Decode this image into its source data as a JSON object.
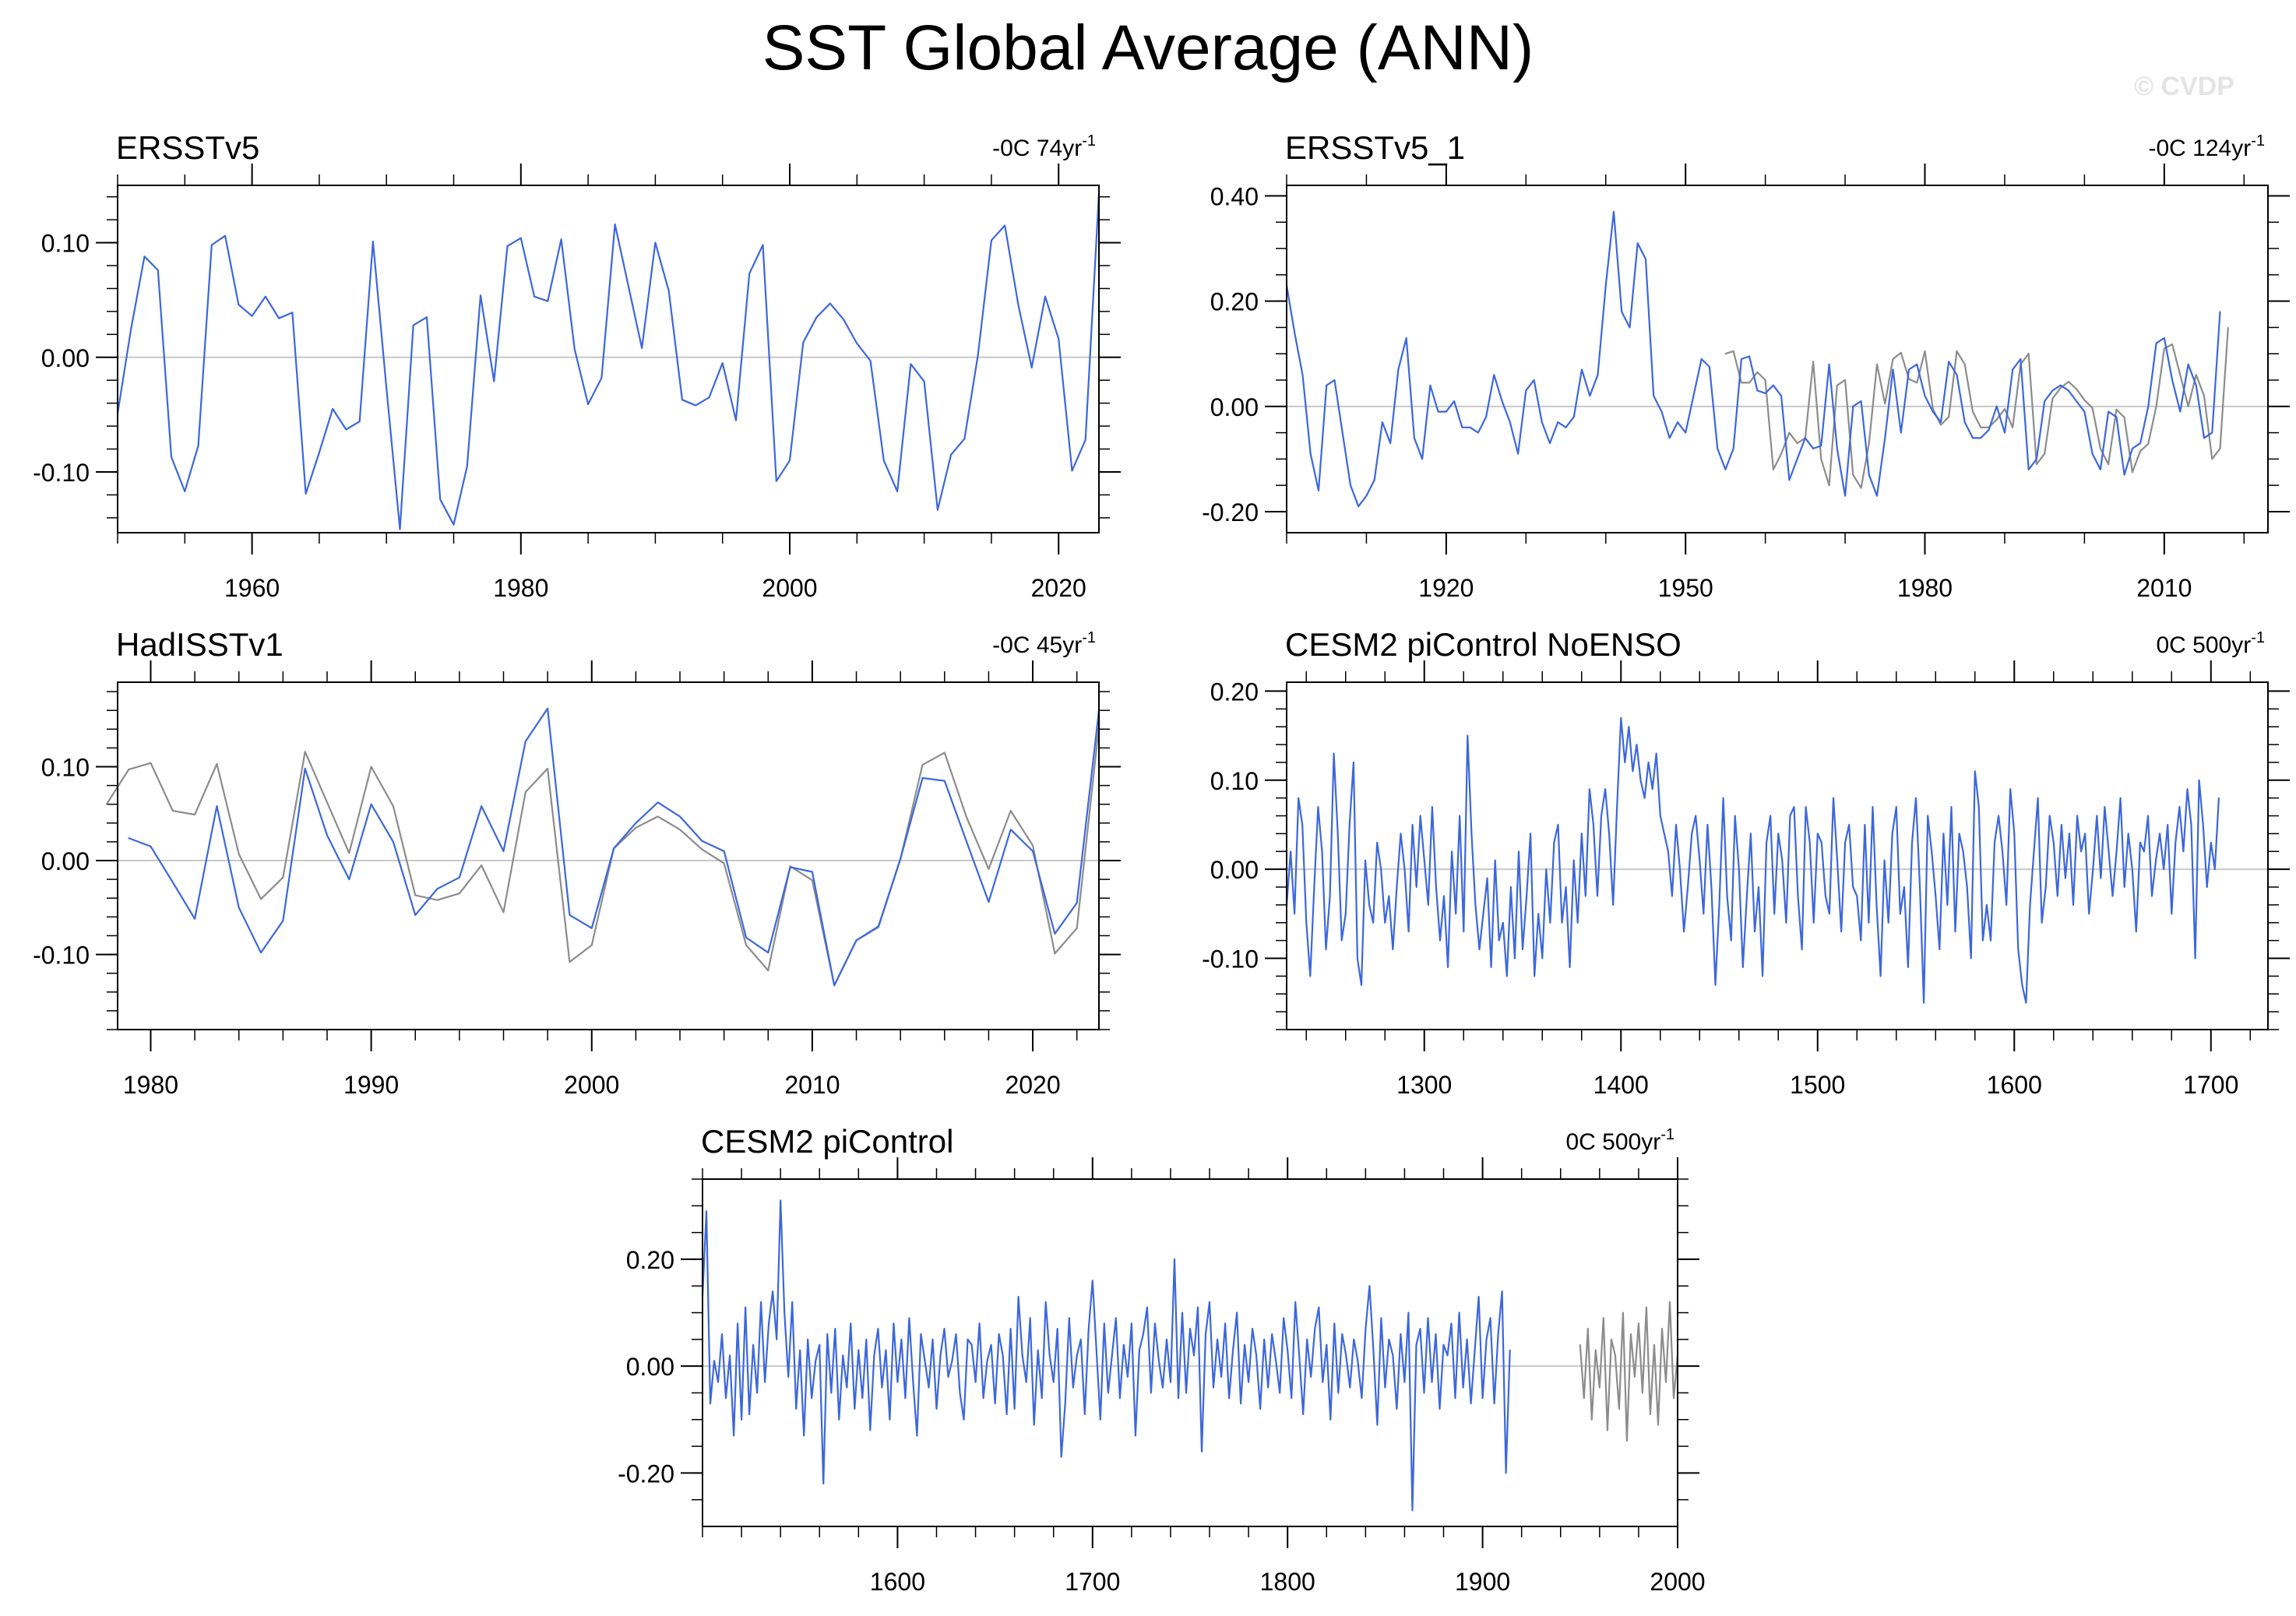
{
  "title": "SST Global Average (ANN)",
  "watermark": "© CVDP",
  "colors": {
    "primary": "#3c67dc",
    "secondary": "#8c8c8c",
    "axis": "#000000",
    "zero_line": "#c8c8c8"
  },
  "chart_data": [
    {
      "type": "line",
      "title": "ERSSTv5",
      "trend": "-0C 74yr",
      "trend_exp": "-1",
      "x_ticks": [
        1960,
        1980,
        2000,
        2020
      ],
      "x_range": [
        1950,
        2023
      ],
      "y_ticks": [
        0.1,
        0.0,
        -0.1
      ],
      "y_tick_labels": [
        "0.10",
        "0.00",
        "-0.10"
      ],
      "y_range": [
        -0.153,
        0.15
      ],
      "series": [
        {
          "color": "#3c67dc",
          "start": 1950,
          "values": [
            -0.049,
            0.025,
            0.088,
            0.076,
            -0.087,
            -0.117,
            -0.077,
            0.098,
            0.106,
            0.046,
            0.036,
            0.053,
            0.034,
            0.039,
            -0.119,
            -0.083,
            -0.045,
            -0.063,
            -0.056,
            0.101,
            -0.027,
            -0.15,
            0.028,
            0.035,
            -0.124,
            -0.146,
            -0.095,
            0.054,
            -0.021,
            0.097,
            0.104,
            0.053,
            0.049,
            0.103,
            0.007,
            -0.041,
            -0.018,
            0.116,
            0.062,
            0.008,
            0.1,
            0.058,
            -0.037,
            -0.042,
            -0.035,
            -0.005,
            -0.055,
            0.073,
            0.098,
            -0.108,
            -0.09,
            0.013,
            0.035,
            0.047,
            0.033,
            0.012,
            -0.003,
            -0.09,
            -0.117,
            -0.006,
            -0.021,
            -0.133,
            -0.085,
            -0.071,
            0.002,
            0.102,
            0.115,
            0.046,
            -0.009,
            0.053,
            0.016,
            -0.099,
            -0.072,
            0.143
          ]
        }
      ]
    },
    {
      "type": "line",
      "title": "ERSSTv5_1",
      "trend": "-0C 124yr",
      "trend_exp": "-1",
      "x_ticks": [
        1920,
        1950,
        1980,
        2010
      ],
      "x_range": [
        1900,
        2023
      ],
      "y_ticks": [
        0.4,
        0.2,
        0.0,
        -0.2
      ],
      "y_tick_labels": [
        "0.40",
        "0.20",
        "0.00",
        "-0.20"
      ],
      "y_range": [
        -0.24,
        0.42
      ],
      "series": [
        {
          "color": "#8c8c8c",
          "start": 1955,
          "values": [
            0.1,
            0.105,
            0.045,
            0.045,
            0.065,
            0.05,
            -0.12,
            -0.09,
            -0.05,
            -0.07,
            -0.06,
            0.085,
            -0.1,
            -0.15,
            0.04,
            0.05,
            -0.13,
            -0.155,
            -0.07,
            0.08,
            0.005,
            0.09,
            0.102,
            0.052,
            0.045,
            0.105,
            -0.005,
            -0.035,
            -0.02,
            0.105,
            0.08,
            -0.01,
            -0.04,
            -0.04,
            -0.025,
            -0.005,
            -0.04,
            0.08,
            0.1,
            -0.11,
            -0.09,
            0.015,
            0.035,
            0.047,
            0.033,
            0.012,
            -0.003,
            -0.08,
            -0.11,
            -0.006,
            -0.021,
            -0.125,
            -0.085,
            -0.071,
            0.0,
            0.11,
            0.118,
            0.06,
            0.0,
            0.06,
            0.02,
            -0.1,
            -0.08,
            0.15
          ]
        },
        {
          "color": "#3c67dc",
          "start": 1900,
          "values": [
            0.23,
            0.14,
            0.06,
            -0.09,
            -0.16,
            0.04,
            0.05,
            -0.05,
            -0.15,
            -0.19,
            -0.17,
            -0.14,
            -0.03,
            -0.07,
            0.07,
            0.13,
            -0.06,
            -0.1,
            0.04,
            -0.01,
            -0.01,
            0.01,
            -0.04,
            -0.04,
            -0.05,
            -0.02,
            0.06,
            0.01,
            -0.03,
            -0.09,
            0.03,
            0.05,
            -0.03,
            -0.07,
            -0.03,
            -0.04,
            -0.02,
            0.07,
            0.02,
            0.06,
            0.23,
            0.37,
            0.18,
            0.15,
            0.31,
            0.28,
            0.02,
            -0.01,
            -0.06,
            -0.03,
            -0.05,
            0.02,
            0.09,
            0.075,
            -0.08,
            -0.12,
            -0.08,
            0.09,
            0.095,
            0.03,
            0.025,
            0.04,
            0.02,
            -0.14,
            -0.1,
            -0.06,
            -0.08,
            -0.075,
            0.08,
            -0.08,
            -0.17,
            0.0,
            0.01,
            -0.13,
            -0.17,
            -0.06,
            0.07,
            -0.05,
            0.07,
            0.08,
            0.02,
            -0.01,
            -0.03,
            0.085,
            0.06,
            -0.03,
            -0.06,
            -0.06,
            -0.045,
            0.0,
            -0.05,
            0.07,
            0.09,
            -0.12,
            -0.1,
            0.01,
            0.03,
            0.04,
            0.03,
            0.01,
            -0.01,
            -0.09,
            -0.12,
            -0.01,
            -0.02,
            -0.13,
            -0.08,
            -0.07,
            0.0,
            0.12,
            0.13,
            0.05,
            -0.01,
            0.08,
            0.04,
            -0.06,
            -0.05,
            0.18
          ]
        }
      ]
    },
    {
      "type": "line",
      "title": "HadISSTv1",
      "trend": "-0C 45yr",
      "trend_exp": "-1",
      "x_ticks": [
        1980,
        1990,
        2000,
        2010,
        2020
      ],
      "x_range": [
        1978.5,
        2023
      ],
      "y_ticks": [
        0.1,
        0.0,
        -0.1
      ],
      "y_tick_labels": [
        "0.10",
        "0.00",
        "-0.10"
      ],
      "y_range": [
        -0.18,
        0.19
      ],
      "series": [
        {
          "color": "#8c8c8c",
          "start": 1978,
          "values": [
            0.06,
            0.097,
            0.104,
            0.053,
            0.049,
            0.103,
            0.007,
            -0.041,
            -0.018,
            0.116,
            0.062,
            0.008,
            0.1,
            0.058,
            -0.037,
            -0.042,
            -0.035,
            -0.005,
            -0.055,
            0.073,
            0.098,
            -0.108,
            -0.09,
            0.013,
            0.035,
            0.047,
            0.033,
            0.012,
            -0.003,
            -0.09,
            -0.117,
            -0.006,
            -0.021,
            -0.133,
            -0.085,
            -0.071,
            0.002,
            0.102,
            0.115,
            0.046,
            -0.009,
            0.053,
            0.016,
            -0.099,
            -0.072,
            0.143
          ]
        },
        {
          "color": "#3c67dc",
          "start": 1979,
          "values": [
            0.024,
            0.015,
            -0.023,
            -0.062,
            0.058,
            -0.05,
            -0.098,
            -0.064,
            0.098,
            0.027,
            -0.02,
            0.06,
            0.02,
            -0.058,
            -0.03,
            -0.018,
            0.058,
            0.01,
            0.127,
            0.162,
            -0.058,
            -0.072,
            0.013,
            0.04,
            0.062,
            0.047,
            0.021,
            0.01,
            -0.082,
            -0.098,
            -0.007,
            -0.012,
            -0.133,
            -0.085,
            -0.07,
            0.002,
            0.088,
            0.085,
            0.02,
            -0.044,
            0.033,
            0.01,
            -0.078,
            -0.045,
            0.16
          ]
        }
      ]
    },
    {
      "type": "line",
      "title": "CESM2 piControl NoENSO",
      "trend": "0C 500yr",
      "trend_exp": "-1",
      "x_ticks": [
        1300,
        1400,
        1500,
        1600,
        1700
      ],
      "x_range": [
        1230,
        1729
      ],
      "y_ticks": [
        0.2,
        0.1,
        0.0,
        -0.1
      ],
      "y_tick_labels": [
        "0.20",
        "0.10",
        "0.00",
        "-0.10"
      ],
      "y_range": [
        -0.18,
        0.21
      ],
      "series": [
        {
          "color": "#3c67dc",
          "start": 1230,
          "step": 2,
          "values": [
            -0.04,
            0.02,
            -0.05,
            0.08,
            0.05,
            -0.06,
            -0.12,
            -0.02,
            0.07,
            0.02,
            -0.09,
            -0.03,
            0.13,
            0.04,
            -0.08,
            -0.05,
            0.05,
            0.12,
            -0.1,
            -0.13,
            0.01,
            -0.04,
            -0.06,
            0.03,
            0.0,
            -0.06,
            -0.03,
            -0.09,
            -0.02,
            0.04,
            0.0,
            -0.07,
            0.05,
            -0.02,
            0.06,
            0.01,
            -0.04,
            0.07,
            -0.02,
            -0.08,
            -0.03,
            -0.11,
            0.02,
            -0.05,
            0.06,
            -0.07,
            0.15,
            0.04,
            -0.04,
            -0.09,
            -0.05,
            -0.01,
            -0.11,
            0.01,
            -0.08,
            -0.06,
            -0.12,
            -0.02,
            -0.1,
            0.02,
            -0.09,
            -0.03,
            0.04,
            -0.12,
            -0.05,
            -0.1,
            0.0,
            -0.06,
            0.03,
            0.05,
            -0.06,
            -0.02,
            -0.11,
            0.01,
            -0.06,
            0.04,
            -0.03,
            0.09,
            0.05,
            -0.03,
            0.06,
            0.09,
            0.04,
            -0.04,
            0.07,
            0.17,
            0.12,
            0.16,
            0.11,
            0.14,
            0.1,
            0.08,
            0.12,
            0.09,
            0.13,
            0.06,
            0.04,
            0.02,
            -0.03,
            0.05,
            0.0,
            -0.07,
            -0.02,
            0.04,
            0.06,
            0.01,
            -0.05,
            0.05,
            -0.02,
            -0.13,
            -0.04,
            0.08,
            -0.03,
            -0.08,
            0.06,
            0.0,
            -0.11,
            -0.03,
            0.04,
            -0.07,
            -0.02,
            -0.12,
            0.03,
            0.06,
            -0.05,
            0.04,
            0.01,
            -0.06,
            0.06,
            0.07,
            -0.03,
            -0.09,
            0.07,
            0.03,
            -0.06,
            0.04,
            0.03,
            -0.03,
            -0.05,
            0.08,
            0.01,
            -0.07,
            0.03,
            0.05,
            -0.02,
            -0.03,
            -0.08,
            0.05,
            -0.06,
            0.07,
            -0.04,
            -0.12,
            0.01,
            -0.06,
            0.04,
            0.07,
            -0.05,
            -0.02,
            -0.11,
            0.03,
            0.08,
            -0.02,
            -0.15,
            0.06,
            0.02,
            -0.03,
            -0.09,
            0.04,
            -0.04,
            0.07,
            -0.07,
            0.04,
            0.02,
            -0.02,
            -0.1,
            0.11,
            0.07,
            -0.08,
            -0.04,
            -0.08,
            0.03,
            0.06,
            0.02,
            -0.04,
            0.09,
            0.04,
            -0.09,
            -0.13,
            -0.15,
            -0.04,
            0.02,
            0.08,
            -0.06,
            -0.02,
            0.06,
            0.03,
            -0.03,
            0.05,
            -0.01,
            0.04,
            -0.04,
            0.06,
            0.02,
            0.04,
            -0.05,
            0.0,
            0.06,
            -0.01,
            0.07,
            0.02,
            -0.03,
            0.02,
            0.08,
            -0.02,
            0.04,
            0.0,
            -0.07,
            0.03,
            0.02,
            0.06,
            -0.03,
            0.01,
            0.04,
            0.0,
            0.05,
            -0.05,
            0.03,
            0.07,
            0.02,
            0.09,
            0.05,
            -0.1,
            0.1,
            0.05,
            -0.02,
            0.03,
            0.0,
            0.08
          ]
        }
      ]
    },
    {
      "type": "line",
      "title": "CESM2 piControl",
      "trend": "0C 500yr",
      "trend_exp": "-1",
      "x_ticks": [
        1600,
        1700,
        1800,
        1900,
        2000
      ],
      "x_range": [
        1500,
        2000
      ],
      "y_ticks": [
        0.2,
        0.0,
        -0.2
      ],
      "y_tick_labels": [
        "0.20",
        "0.00",
        "-0.20"
      ],
      "y_range": [
        -0.3,
        0.35
      ],
      "series": [
        {
          "color": "#8c8c8c",
          "start": 1950,
          "step": 2,
          "values": [
            0.04,
            -0.06,
            0.07,
            -0.1,
            0.03,
            -0.04,
            0.09,
            -0.12,
            0.05,
            0.02,
            -0.08,
            0.1,
            -0.14,
            0.06,
            -0.02,
            0.08,
            -0.05,
            0.11,
            -0.09,
            0.04,
            -0.11,
            0.07,
            -0.03,
            0.12,
            -0.06,
            0.02
          ]
        },
        {
          "color": "#3c67dc",
          "start": 1500,
          "step": 2,
          "values": [
            0.13,
            0.29,
            -0.07,
            0.01,
            -0.03,
            0.06,
            -0.06,
            0.02,
            -0.13,
            0.08,
            -0.1,
            0.11,
            -0.09,
            0.04,
            -0.05,
            0.12,
            -0.03,
            0.08,
            0.14,
            0.05,
            0.31,
            0.1,
            -0.02,
            0.12,
            -0.08,
            0.03,
            -0.13,
            0.05,
            -0.06,
            0.01,
            0.04,
            -0.22,
            0.06,
            -0.05,
            0.07,
            -0.1,
            0.02,
            -0.04,
            0.08,
            -0.08,
            0.03,
            -0.06,
            0.05,
            -0.12,
            0.02,
            0.07,
            -0.04,
            0.03,
            -0.1,
            0.08,
            -0.03,
            0.05,
            -0.06,
            0.09,
            -0.03,
            -0.13,
            0.06,
            0.01,
            -0.04,
            0.05,
            -0.08,
            0.02,
            0.07,
            -0.02,
            0.01,
            0.06,
            -0.05,
            -0.1,
            0.05,
            0.04,
            -0.03,
            0.08,
            -0.06,
            0.01,
            0.04,
            -0.07,
            0.06,
            0.02,
            -0.09,
            0.07,
            -0.08,
            0.13,
            0.02,
            -0.03,
            0.09,
            -0.11,
            0.03,
            -0.06,
            0.12,
            0.02,
            -0.03,
            0.07,
            -0.17,
            -0.07,
            0.09,
            -0.04,
            0.02,
            0.05,
            -0.09,
            0.07,
            0.16,
            0.03,
            -0.1,
            0.08,
            -0.05,
            0.02,
            0.09,
            -0.06,
            0.04,
            -0.02,
            0.08,
            -0.13,
            0.03,
            0.06,
            0.11,
            -0.05,
            0.08,
            0.01,
            -0.04,
            0.05,
            -0.03,
            0.2,
            -0.06,
            0.1,
            -0.05,
            0.07,
            0.02,
            0.11,
            -0.16,
            0.06,
            0.12,
            -0.04,
            0.05,
            -0.02,
            0.08,
            -0.06,
            0.03,
            0.1,
            -0.07,
            0.04,
            -0.03,
            0.07,
            0.02,
            -0.08,
            0.05,
            -0.04,
            0.06,
            0.01,
            -0.05,
            0.09,
            0.03,
            -0.06,
            0.12,
            0.02,
            -0.09,
            0.05,
            -0.02,
            0.07,
            0.11,
            -0.03,
            0.04,
            -0.1,
            0.08,
            -0.05,
            0.06,
            0.02,
            -0.04,
            0.05,
            0.01,
            -0.06,
            0.07,
            0.15,
            0.03,
            -0.11,
            0.09,
            -0.04,
            0.05,
            0.02,
            -0.08,
            0.06,
            -0.03,
            0.1,
            -0.27,
            0.04,
            0.07,
            -0.05,
            0.09,
            -0.03,
            0.06,
            -0.08,
            0.04,
            0.02,
            0.08,
            -0.06,
            0.1,
            -0.04,
            0.05,
            -0.07,
            0.03,
            0.13,
            -0.06,
            0.05,
            0.09,
            -0.07,
            0.06,
            0.14,
            -0.2,
            0.03
          ]
        }
      ]
    }
  ]
}
